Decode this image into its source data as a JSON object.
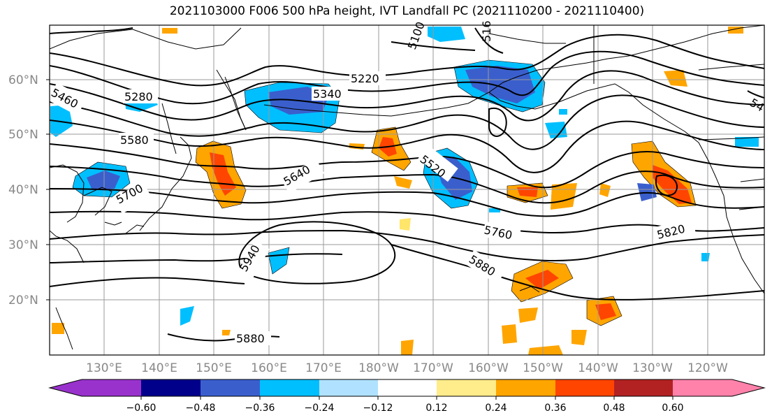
{
  "title": "2021103000 F006 500 hPa height, IVT Landfall PC (2021110200 - 2021110400)",
  "latitude_labels": [
    "60°N",
    "50°N",
    "40°N",
    "30°N",
    "20°N"
  ],
  "longitude_labels": [
    "130°E",
    "140°E",
    "150°E",
    "160°E",
    "170°E",
    "180°W",
    "170°W",
    "160°W",
    "150°W",
    "140°W",
    "130°W",
    "120°W"
  ],
  "contour_labels": [
    "5280",
    "5460",
    "5580",
    "5700",
    "5220",
    "5340",
    "5100",
    "516",
    "5640",
    "5520",
    "5760",
    "5880",
    "5940",
    "5820",
    "5880",
    "54"
  ],
  "colorbar": {
    "colors": [
      "#9932cc",
      "#00008b",
      "#3a5fcd",
      "#00bfff",
      "#b0e2ff",
      "#ffffff",
      "#ffec8b",
      "#ffa500",
      "#ff4500",
      "#b22222",
      "#ff82ab"
    ],
    "tick_labels": [
      "−0.60",
      "−0.48",
      "−0.36",
      "−0.24",
      "−0.12",
      "0.12",
      "0.24",
      "0.36",
      "0.48",
      "0.60"
    ]
  }
}
